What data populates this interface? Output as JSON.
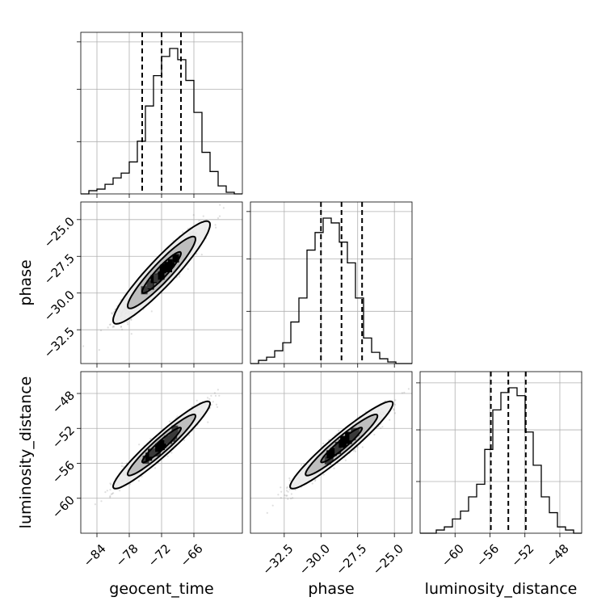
{
  "chart_data": {
    "type": "corner",
    "parameters": [
      "geocent_time",
      "phase",
      "luminosity_distance"
    ],
    "axis_labels": {
      "geocent_time": "geocent_time",
      "phase": "phase",
      "luminosity_distance": "luminosity_distance"
    },
    "ranges": {
      "geocent_time": [
        -87,
        -57
      ],
      "phase": [
        -34.8,
        -23.8
      ],
      "luminosity_distance": [
        -64.0,
        -45.5
      ]
    },
    "ticks": {
      "geocent_time": [
        -84,
        -78,
        -72,
        -66
      ],
      "phase": [
        -32.5,
        -30.0,
        -27.5,
        -25.0
      ],
      "luminosity_distance": [
        -60,
        -56,
        -52,
        -48
      ]
    },
    "tick_labels": {
      "geocent_time": [
        "−84",
        "−78",
        "−72",
        "−66"
      ],
      "phase": [
        "−32.5",
        "−30.0",
        "−27.5",
        "−25.0"
      ],
      "luminosity_distance": [
        "−60",
        "−56",
        "−52",
        "−48"
      ]
    },
    "quantiles": {
      "geocent_time": [
        -75.6,
        -72.0,
        -68.4
      ],
      "phase": [
        -30.0,
        -28.6,
        -27.2
      ],
      "luminosity_distance": [
        -55.9,
        -53.9,
        -51.9
      ]
    },
    "histograms": {
      "geocent_time": [
        0.0,
        0.02,
        0.03,
        0.06,
        0.1,
        0.13,
        0.2,
        0.33,
        0.55,
        0.74,
        0.86,
        0.91,
        0.84,
        0.71,
        0.51,
        0.26,
        0.14,
        0.05,
        0.01,
        0.0
      ],
      "phase": [
        0.0,
        0.02,
        0.04,
        0.08,
        0.13,
        0.26,
        0.41,
        0.71,
        0.82,
        0.91,
        0.88,
        0.76,
        0.63,
        0.41,
        0.16,
        0.07,
        0.03,
        0.01,
        0.0,
        0.0
      ],
      "luminosity_distance": [
        0.0,
        0.0,
        0.02,
        0.04,
        0.09,
        0.14,
        0.23,
        0.31,
        0.53,
        0.78,
        0.89,
        0.92,
        0.87,
        0.64,
        0.43,
        0.23,
        0.13,
        0.04,
        0.02,
        0.0
      ]
    },
    "correlations": {
      "phase_vs_geocent_time": 0.93,
      "luminosity_distance_vs_geocent_time": 0.95,
      "luminosity_distance_vs_phase": 0.95
    },
    "grid": true,
    "scatter_color": "#808080",
    "line_color": "#000000"
  }
}
